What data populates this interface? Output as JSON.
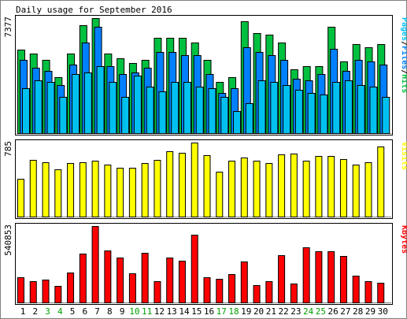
{
  "chart_data": [
    {
      "type": "bar",
      "title": "Daily usage for September 2016",
      "y_max_label": "7377",
      "ylim": [
        0,
        7377
      ],
      "categories": [
        "1",
        "2",
        "3",
        "4",
        "5",
        "6",
        "7",
        "8",
        "9",
        "10",
        "11",
        "12",
        "13",
        "14",
        "15",
        "16",
        "17",
        "18",
        "19",
        "20",
        "21",
        "22",
        "23",
        "24",
        "25",
        "26",
        "27",
        "28",
        "29",
        "30"
      ],
      "weekend_days": [
        "3",
        "4",
        "10",
        "11",
        "17",
        "18",
        "24",
        "25"
      ],
      "y_axis_label": {
        "parts": [
          {
            "text": "Pages",
            "color": "#00c0f0"
          },
          {
            "text": "/",
            "color": "#000000"
          },
          {
            "text": "Files",
            "color": "#0080ff"
          },
          {
            "text": "/",
            "color": "#000000"
          },
          {
            "text": "Hits",
            "color": "#00c040"
          }
        ]
      },
      "series": [
        {
          "name": "Hits",
          "color": "#00c040",
          "values": [
            5380,
            5100,
            4700,
            3600,
            5100,
            6900,
            7377,
            5100,
            4800,
            4500,
            4700,
            6100,
            6100,
            6100,
            5800,
            4700,
            3300,
            3600,
            7200,
            6400,
            6300,
            5800,
            4100,
            4300,
            4300,
            6800,
            4600,
            5700,
            5500,
            5700
          ]
        },
        {
          "name": "Files",
          "color": "#0080ff",
          "values": [
            4700,
            4200,
            4000,
            3100,
            4400,
            5800,
            6800,
            4300,
            3800,
            3900,
            4200,
            5200,
            5200,
            5000,
            5000,
            3800,
            2600,
            2900,
            5500,
            5200,
            5000,
            4700,
            3500,
            3400,
            3800,
            5400,
            4000,
            4700,
            4600,
            4400
          ]
        },
        {
          "name": "Pages",
          "color": "#00c0f0",
          "values": [
            2900,
            3400,
            3300,
            2300,
            3800,
            3900,
            4300,
            3300,
            2300,
            3700,
            3000,
            2700,
            3300,
            3300,
            3000,
            2900,
            2300,
            1400,
            1900,
            3400,
            3300,
            3100,
            2800,
            2600,
            2500,
            3300,
            3400,
            3100,
            3000,
            2300
          ]
        }
      ]
    },
    {
      "type": "bar",
      "y_max_label": "785",
      "ylim": [
        0,
        785
      ],
      "y_axis_label": "Visits",
      "series": [
        {
          "name": "Visits",
          "color": "#ffff00",
          "values": [
            400,
            600,
            575,
            505,
            570,
            575,
            590,
            550,
            515,
            520,
            570,
            600,
            690,
            675,
            785,
            650,
            480,
            595,
            630,
            590,
            565,
            660,
            670,
            595,
            640,
            645,
            610,
            555,
            575,
            740
          ]
        }
      ]
    },
    {
      "type": "bar",
      "y_max_label": "540853",
      "ylim": [
        0,
        540853
      ],
      "y_axis_label": "KBytes",
      "series": [
        {
          "name": "KBytes",
          "color": "#ff0000",
          "values": [
            178000,
            150000,
            160000,
            115000,
            213000,
            347000,
            540853,
            370000,
            318000,
            208000,
            353000,
            152000,
            320000,
            295000,
            477000,
            178000,
            170000,
            200000,
            290000,
            122000,
            150000,
            336000,
            132000,
            390000,
            365000,
            360000,
            330000,
            188000,
            148000,
            138000
          ]
        }
      ]
    }
  ]
}
